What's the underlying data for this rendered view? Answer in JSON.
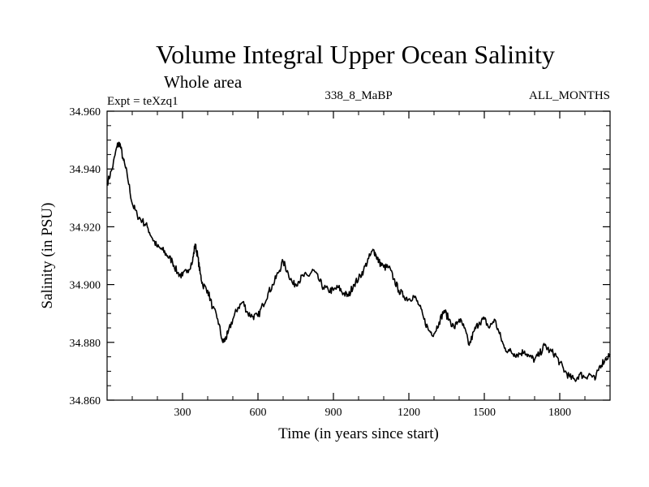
{
  "chart_data": {
    "type": "line",
    "title": "Volume Integral Upper Ocean Salinity",
    "subtitle": "Whole area",
    "experiment_label": "Expt = teXzq1",
    "period_label": "338_8_MaBP",
    "months_label": "ALL_MONTHS",
    "xlabel": "Time (in years since start)",
    "ylabel": "Salinity (in PSU)",
    "xlim": [
      0,
      2000
    ],
    "ylim": [
      34.86,
      34.96
    ],
    "x_ticks": [
      300,
      600,
      900,
      1200,
      1500,
      1800
    ],
    "x_tick_labels": [
      "300",
      "600",
      "900",
      "1200",
      "1500",
      "1800"
    ],
    "y_ticks": [
      34.86,
      34.88,
      34.9,
      34.92,
      34.94,
      34.96
    ],
    "y_tick_labels": [
      "34.860",
      "34.880",
      "34.900",
      "34.920",
      "34.940",
      "34.960"
    ],
    "grid": false,
    "series": [
      {
        "name": "Salinity",
        "color": "#000000",
        "x": [
          0,
          20,
          40,
          50,
          65,
          80,
          100,
          120,
          140,
          160,
          180,
          200,
          220,
          240,
          260,
          280,
          300,
          320,
          340,
          350,
          360,
          370,
          380,
          400,
          420,
          440,
          460,
          470,
          480,
          500,
          520,
          540,
          560,
          580,
          600,
          620,
          640,
          660,
          680,
          700,
          720,
          740,
          760,
          780,
          800,
          820,
          840,
          860,
          880,
          900,
          920,
          940,
          960,
          980,
          1000,
          1020,
          1040,
          1060,
          1070,
          1080,
          1100,
          1120,
          1140,
          1160,
          1180,
          1200,
          1220,
          1240,
          1260,
          1280,
          1300,
          1320,
          1340,
          1360,
          1380,
          1400,
          1420,
          1440,
          1460,
          1480,
          1500,
          1520,
          1540,
          1560,
          1580,
          1600,
          1620,
          1640,
          1660,
          1680,
          1700,
          1720,
          1740,
          1760,
          1780,
          1800,
          1820,
          1840,
          1860,
          1880,
          1900,
          1920,
          1940,
          1960,
          1980,
          2000
        ],
        "values": [
          34.935,
          34.94,
          34.948,
          34.949,
          34.943,
          34.938,
          34.928,
          34.924,
          34.922,
          34.92,
          34.916,
          34.913,
          34.912,
          34.91,
          34.908,
          34.904,
          34.903,
          34.905,
          34.908,
          34.914,
          34.91,
          34.904,
          34.9,
          34.898,
          34.892,
          34.888,
          34.88,
          34.881,
          34.883,
          34.888,
          34.892,
          34.894,
          34.89,
          34.889,
          34.889,
          34.893,
          34.897,
          34.9,
          34.904,
          34.908,
          34.904,
          34.9,
          34.901,
          34.903,
          34.903,
          34.905,
          34.902,
          34.899,
          34.898,
          34.898,
          34.899,
          34.897,
          34.896,
          34.9,
          34.902,
          34.905,
          34.909,
          34.912,
          34.91,
          34.908,
          34.906,
          34.906,
          34.902,
          34.898,
          34.896,
          34.895,
          34.896,
          34.893,
          34.888,
          34.884,
          34.883,
          34.887,
          34.891,
          34.888,
          34.885,
          34.888,
          34.885,
          34.879,
          34.884,
          34.887,
          34.888,
          34.885,
          34.888,
          34.883,
          34.878,
          34.877,
          34.876,
          34.876,
          34.877,
          34.875,
          34.874,
          34.876,
          34.879,
          34.877,
          34.876,
          34.873,
          34.87,
          34.868,
          34.867,
          34.869,
          34.868,
          34.869,
          34.867,
          34.872,
          34.874,
          34.876
        ]
      }
    ]
  }
}
